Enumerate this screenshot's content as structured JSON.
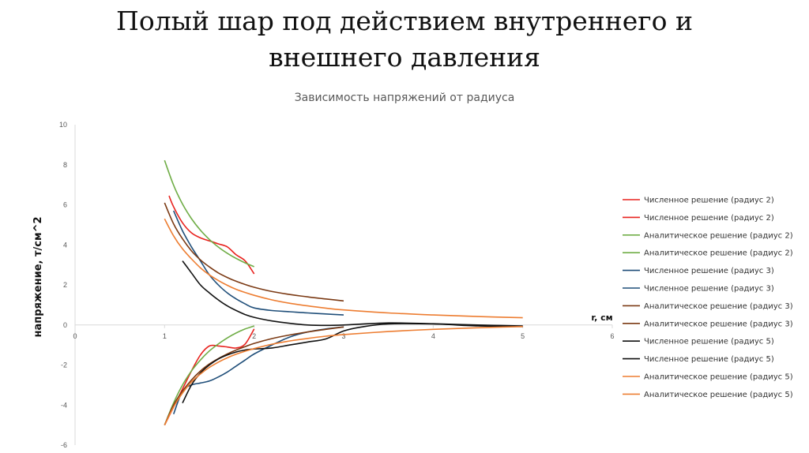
{
  "slide": {
    "title_line1": "Полый шар под действием внутреннего и",
    "title_line2": "внешнего давления"
  },
  "chart_data": {
    "type": "line",
    "title": "Зависимость напряжений от радиуса",
    "xlabel": "r, см",
    "ylabel": "напряжение, т/см^2",
    "xlim": [
      0,
      6
    ],
    "ylim": [
      -6,
      10
    ],
    "xticks": [
      "0",
      "1",
      "2",
      "3",
      "4",
      "5",
      "6"
    ],
    "yticks": [
      "-6",
      "-4",
      "-2",
      "0",
      "2",
      "4",
      "6",
      "8",
      "10"
    ],
    "grid": false,
    "legend_position": "right",
    "series": [
      {
        "name": "Численное решение (радиус 2)",
        "color": "#e8231f",
        "x": [
          1.05,
          1.1,
          1.2,
          1.3,
          1.4,
          1.5,
          1.6,
          1.7,
          1.8,
          1.9,
          2.0
        ],
        "y": [
          6.45,
          5.9,
          5.1,
          4.6,
          4.35,
          4.2,
          4.05,
          3.9,
          3.5,
          3.2,
          2.55
        ]
      },
      {
        "name": "Численное решение (радиус 2)",
        "color": "#e8231f",
        "x": [
          1.0,
          1.1,
          1.2,
          1.3,
          1.4,
          1.5,
          1.6,
          1.7,
          1.8,
          1.9,
          2.0
        ],
        "y": [
          -5.0,
          -4.1,
          -3.2,
          -2.3,
          -1.5,
          -1.05,
          -1.05,
          -1.1,
          -1.15,
          -0.95,
          -0.2
        ]
      },
      {
        "name": "Аналитическое решение (радиус 2)",
        "color": "#70ad47",
        "x": [
          1.0,
          1.1,
          1.2,
          1.3,
          1.4,
          1.5,
          1.6,
          1.7,
          1.8,
          1.9,
          2.0
        ],
        "y": [
          8.22,
          6.98,
          6.04,
          5.31,
          4.73,
          4.27,
          3.89,
          3.58,
          3.32,
          3.1,
          2.91
        ]
      },
      {
        "name": "Аналитическое решение (радиус 2)",
        "color": "#70ad47",
        "x": [
          1.0,
          1.1,
          1.2,
          1.3,
          1.4,
          1.5,
          1.6,
          1.7,
          1.8,
          1.9,
          2.0
        ],
        "y": [
          -5.0,
          -3.9,
          -3.0,
          -2.3,
          -1.75,
          -1.3,
          -0.95,
          -0.65,
          -0.4,
          -0.2,
          -0.05
        ]
      },
      {
        "name": "Численное решение (радиус 3)",
        "color": "#1f4e79",
        "x": [
          1.1,
          1.2,
          1.3,
          1.4,
          1.5,
          1.6,
          1.7,
          1.8,
          1.9,
          2.0,
          2.2,
          2.4,
          2.6,
          2.8,
          3.0
        ],
        "y": [
          5.7,
          4.7,
          3.9,
          3.2,
          2.5,
          2.0,
          1.6,
          1.3,
          1.05,
          0.85,
          0.72,
          0.66,
          0.6,
          0.55,
          0.5
        ]
      },
      {
        "name": "Численное решение (радиус 3)",
        "color": "#1f4e79",
        "x": [
          1.1,
          1.2,
          1.3,
          1.4,
          1.5,
          1.6,
          1.7,
          1.8,
          1.9,
          2.0,
          2.2,
          2.4,
          2.6,
          2.8,
          3.0
        ],
        "y": [
          -4.45,
          -3.3,
          -3.0,
          -2.9,
          -2.8,
          -2.6,
          -2.35,
          -2.05,
          -1.75,
          -1.45,
          -1.0,
          -0.6,
          -0.35,
          -0.2,
          -0.1
        ]
      },
      {
        "name": "Аналитическое решение (радиус 3)",
        "color": "#7b3a14",
        "x": [
          1.0,
          1.1,
          1.2,
          1.3,
          1.4,
          1.5,
          1.6,
          1.7,
          1.8,
          1.9,
          2.0,
          2.2,
          2.4,
          2.6,
          2.8,
          3.0
        ],
        "y": [
          6.1,
          5.05,
          4.3,
          3.7,
          3.25,
          2.9,
          2.6,
          2.37,
          2.18,
          2.02,
          1.88,
          1.67,
          1.52,
          1.4,
          1.3,
          1.2
        ]
      },
      {
        "name": "Аналитическое решение (радиус 3)",
        "color": "#7b3a14",
        "x": [
          1.0,
          1.1,
          1.2,
          1.3,
          1.4,
          1.5,
          1.6,
          1.7,
          1.8,
          1.9,
          2.0,
          2.2,
          2.4,
          2.6,
          2.8,
          3.0
        ],
        "y": [
          -5.0,
          -4.0,
          -3.3,
          -2.75,
          -2.3,
          -1.95,
          -1.68,
          -1.45,
          -1.25,
          -1.08,
          -0.92,
          -0.68,
          -0.5,
          -0.35,
          -0.22,
          -0.1
        ]
      },
      {
        "name": "Численное решение (радиус 5)",
        "color": "#111111",
        "x": [
          1.2,
          1.3,
          1.4,
          1.5,
          1.6,
          1.7,
          1.8,
          1.9,
          2.0,
          2.2,
          2.4,
          2.6,
          2.8,
          3.0,
          3.5,
          4.0,
          4.5,
          5.0
        ],
        "y": [
          3.2,
          2.6,
          2.0,
          1.6,
          1.25,
          0.95,
          0.72,
          0.52,
          0.38,
          0.2,
          0.08,
          0.0,
          -0.02,
          0.0,
          0.1,
          0.06,
          0.0,
          -0.05
        ]
      },
      {
        "name": "Численное решение (радиус 5)",
        "color": "#111111",
        "x": [
          1.2,
          1.3,
          1.4,
          1.5,
          1.6,
          1.7,
          1.8,
          1.9,
          2.0,
          2.2,
          2.4,
          2.6,
          2.8,
          3.0,
          3.2,
          3.5,
          4.0,
          4.5,
          5.0
        ],
        "y": [
          -3.9,
          -3.0,
          -2.4,
          -2.0,
          -1.7,
          -1.5,
          -1.35,
          -1.25,
          -1.2,
          -1.15,
          -1.0,
          -0.85,
          -0.7,
          -0.3,
          -0.1,
          0.05,
          0.05,
          -0.05,
          -0.08
        ]
      },
      {
        "name": "Аналитическое решение (радиус 5)",
        "color": "#ed7d31",
        "x": [
          1.0,
          1.1,
          1.2,
          1.3,
          1.4,
          1.5,
          1.6,
          1.7,
          1.8,
          1.9,
          2.0,
          2.2,
          2.4,
          2.6,
          2.8,
          3.0,
          3.5,
          4.0,
          4.5,
          5.0
        ],
        "y": [
          5.3,
          4.45,
          3.8,
          3.3,
          2.85,
          2.5,
          2.22,
          1.98,
          1.78,
          1.62,
          1.48,
          1.25,
          1.08,
          0.95,
          0.84,
          0.75,
          0.6,
          0.5,
          0.42,
          0.36
        ]
      },
      {
        "name": "Аналитическое решение (радиус 5)",
        "color": "#ed7d31",
        "x": [
          1.0,
          1.1,
          1.2,
          1.3,
          1.4,
          1.5,
          1.6,
          1.7,
          1.8,
          1.9,
          2.0,
          2.2,
          2.4,
          2.6,
          2.8,
          3.0,
          3.5,
          4.0,
          4.5,
          5.0
        ],
        "y": [
          -5.0,
          -4.1,
          -3.4,
          -2.85,
          -2.45,
          -2.12,
          -1.86,
          -1.64,
          -1.46,
          -1.31,
          -1.18,
          -0.96,
          -0.8,
          -0.67,
          -0.56,
          -0.48,
          -0.33,
          -0.22,
          -0.14,
          -0.08
        ]
      }
    ]
  }
}
